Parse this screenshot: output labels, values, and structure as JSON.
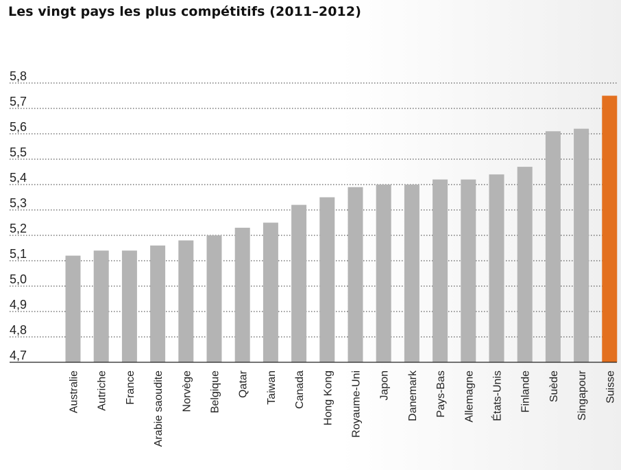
{
  "chart_data": {
    "type": "bar",
    "title": "Les vingt pays les plus compétitifs (2011–2012)",
    "xlabel": "",
    "ylabel": "",
    "ylim": [
      4.7,
      5.8
    ],
    "yticks": [
      "4,7",
      "4,8",
      "4,9",
      "5,0",
      "5,1",
      "5,2",
      "5,3",
      "5,4",
      "5,5",
      "5,6",
      "5,7",
      "5,8"
    ],
    "grid": "horizontal-dotted",
    "categories": [
      "Australie",
      "Autriche",
      "France",
      "Arabie saoudite",
      "Norvège",
      "Belgique",
      "Qatar",
      "Taiwan",
      "Canada",
      "Hong Kong",
      "Royaume-Uni",
      "Japon",
      "Danemark",
      "Pays-Bas",
      "Allemagne",
      "États-Unis",
      "Finlande",
      "Suède",
      "Singapour",
      "Suisse"
    ],
    "values": [
      5.12,
      5.14,
      5.14,
      5.16,
      5.18,
      5.2,
      5.23,
      5.25,
      5.32,
      5.35,
      5.39,
      5.4,
      5.4,
      5.42,
      5.42,
      5.44,
      5.47,
      5.61,
      5.62,
      5.75
    ],
    "highlight_index": 19,
    "colors": {
      "bar": "#b4b4b4",
      "highlight": "#e3701f",
      "grid": "#333333",
      "axis": "#222222"
    }
  }
}
